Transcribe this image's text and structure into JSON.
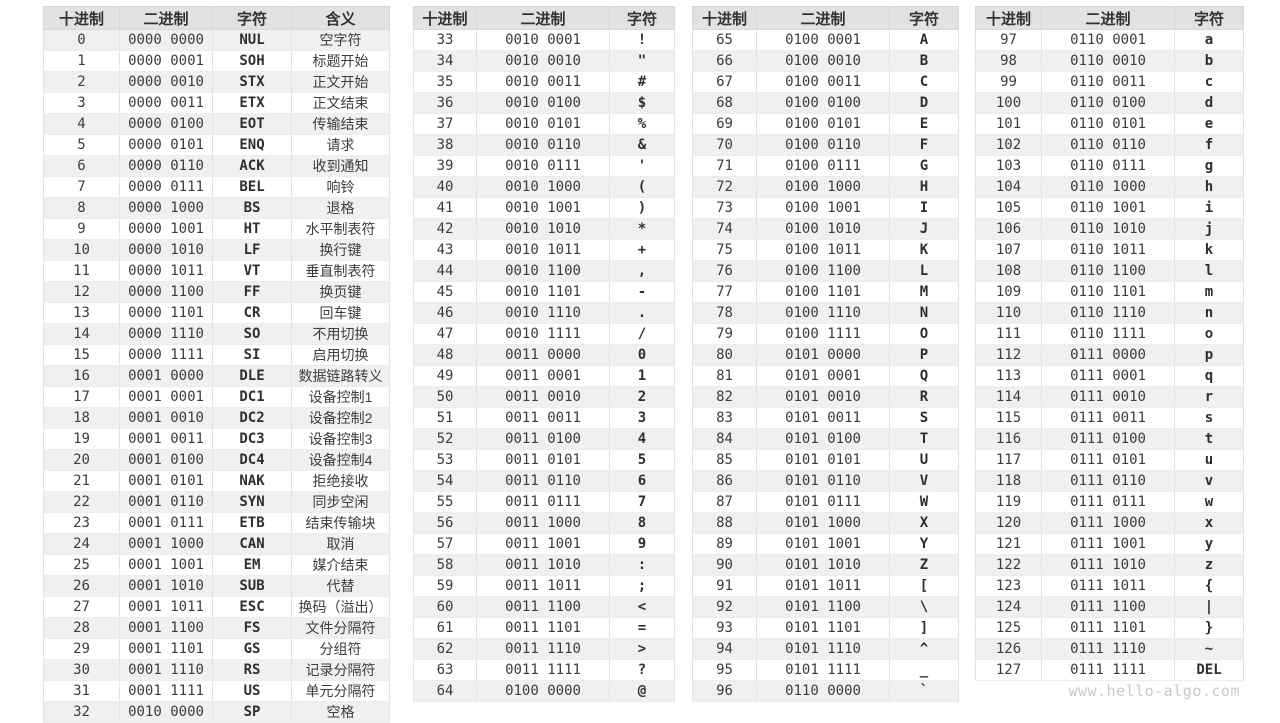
{
  "watermark": "www.hello-algo.com",
  "colors": {
    "header_bg": "#e2e2e2",
    "stripe_bg": "#f0f0f0",
    "row_bg": "#ffffff",
    "text": "#3d3d3d",
    "watermark": "#c9c9c9"
  },
  "tables": [
    {
      "name": "ascii-control-characters",
      "headers": [
        "十进制",
        "二进制",
        "字符",
        "含义"
      ],
      "rows": [
        [
          "0",
          "0000 0000",
          "NUL",
          "空字符"
        ],
        [
          "1",
          "0000 0001",
          "SOH",
          "标题开始"
        ],
        [
          "2",
          "0000 0010",
          "STX",
          "正文开始"
        ],
        [
          "3",
          "0000 0011",
          "ETX",
          "正文结束"
        ],
        [
          "4",
          "0000 0100",
          "EOT",
          "传输结束"
        ],
        [
          "5",
          "0000 0101",
          "ENQ",
          "请求"
        ],
        [
          "6",
          "0000 0110",
          "ACK",
          "收到通知"
        ],
        [
          "7",
          "0000 0111",
          "BEL",
          "响铃"
        ],
        [
          "8",
          "0000 1000",
          "BS",
          "退格"
        ],
        [
          "9",
          "0000 1001",
          "HT",
          "水平制表符"
        ],
        [
          "10",
          "0000 1010",
          "LF",
          "换行键"
        ],
        [
          "11",
          "0000 1011",
          "VT",
          "垂直制表符"
        ],
        [
          "12",
          "0000 1100",
          "FF",
          "换页键"
        ],
        [
          "13",
          "0000 1101",
          "CR",
          "回车键"
        ],
        [
          "14",
          "0000 1110",
          "SO",
          "不用切换"
        ],
        [
          "15",
          "0000 1111",
          "SI",
          "启用切换"
        ],
        [
          "16",
          "0001 0000",
          "DLE",
          "数据链路转义"
        ],
        [
          "17",
          "0001 0001",
          "DC1",
          "设备控制1"
        ],
        [
          "18",
          "0001 0010",
          "DC2",
          "设备控制2"
        ],
        [
          "19",
          "0001 0011",
          "DC3",
          "设备控制3"
        ],
        [
          "20",
          "0001 0100",
          "DC4",
          "设备控制4"
        ],
        [
          "21",
          "0001 0101",
          "NAK",
          "拒绝接收"
        ],
        [
          "22",
          "0001 0110",
          "SYN",
          "同步空闲"
        ],
        [
          "23",
          "0001 0111",
          "ETB",
          "结束传输块"
        ],
        [
          "24",
          "0001 1000",
          "CAN",
          "取消"
        ],
        [
          "25",
          "0001 1001",
          "EM",
          "媒介结束"
        ],
        [
          "26",
          "0001 1010",
          "SUB",
          "代替"
        ],
        [
          "27",
          "0001 1011",
          "ESC",
          "换码（溢出）"
        ],
        [
          "28",
          "0001 1100",
          "FS",
          "文件分隔符"
        ],
        [
          "29",
          "0001 1101",
          "GS",
          "分组符"
        ],
        [
          "30",
          "0001 1110",
          "RS",
          "记录分隔符"
        ],
        [
          "31",
          "0001 1111",
          "US",
          "单元分隔符"
        ],
        [
          "32",
          "0010 0000",
          "SP",
          "空格"
        ]
      ]
    },
    {
      "name": "ascii-33-64",
      "headers": [
        "十进制",
        "二进制",
        "字符"
      ],
      "rows": [
        [
          "33",
          "0010 0001",
          "!"
        ],
        [
          "34",
          "0010 0010",
          "\""
        ],
        [
          "35",
          "0010 0011",
          "#"
        ],
        [
          "36",
          "0010 0100",
          "$"
        ],
        [
          "37",
          "0010 0101",
          "%"
        ],
        [
          "38",
          "0010 0110",
          "&"
        ],
        [
          "39",
          "0010 0111",
          "'"
        ],
        [
          "40",
          "0010 1000",
          "("
        ],
        [
          "41",
          "0010 1001",
          ")"
        ],
        [
          "42",
          "0010 1010",
          "*"
        ],
        [
          "43",
          "0010 1011",
          "+"
        ],
        [
          "44",
          "0010 1100",
          ","
        ],
        [
          "45",
          "0010 1101",
          "-"
        ],
        [
          "46",
          "0010 1110",
          "."
        ],
        [
          "47",
          "0010 1111",
          "/"
        ],
        [
          "48",
          "0011 0000",
          "0"
        ],
        [
          "49",
          "0011 0001",
          "1"
        ],
        [
          "50",
          "0011 0010",
          "2"
        ],
        [
          "51",
          "0011 0011",
          "3"
        ],
        [
          "52",
          "0011 0100",
          "4"
        ],
        [
          "53",
          "0011 0101",
          "5"
        ],
        [
          "54",
          "0011 0110",
          "6"
        ],
        [
          "55",
          "0011 0111",
          "7"
        ],
        [
          "56",
          "0011 1000",
          "8"
        ],
        [
          "57",
          "0011 1001",
          "9"
        ],
        [
          "58",
          "0011 1010",
          ":"
        ],
        [
          "59",
          "0011 1011",
          ";"
        ],
        [
          "60",
          "0011 1100",
          "<"
        ],
        [
          "61",
          "0011 1101",
          "="
        ],
        [
          "62",
          "0011 1110",
          ">"
        ],
        [
          "63",
          "0011 1111",
          "?"
        ],
        [
          "64",
          "0100 0000",
          "@"
        ]
      ]
    },
    {
      "name": "ascii-65-96",
      "headers": [
        "十进制",
        "二进制",
        "字符"
      ],
      "rows": [
        [
          "65",
          "0100 0001",
          "A"
        ],
        [
          "66",
          "0100 0010",
          "B"
        ],
        [
          "67",
          "0100 0011",
          "C"
        ],
        [
          "68",
          "0100 0100",
          "D"
        ],
        [
          "69",
          "0100 0101",
          "E"
        ],
        [
          "70",
          "0100 0110",
          "F"
        ],
        [
          "71",
          "0100 0111",
          "G"
        ],
        [
          "72",
          "0100 1000",
          "H"
        ],
        [
          "73",
          "0100 1001",
          "I"
        ],
        [
          "74",
          "0100 1010",
          "J"
        ],
        [
          "75",
          "0100 1011",
          "K"
        ],
        [
          "76",
          "0100 1100",
          "L"
        ],
        [
          "77",
          "0100 1101",
          "M"
        ],
        [
          "78",
          "0100 1110",
          "N"
        ],
        [
          "79",
          "0100 1111",
          "O"
        ],
        [
          "80",
          "0101 0000",
          "P"
        ],
        [
          "81",
          "0101 0001",
          "Q"
        ],
        [
          "82",
          "0101 0010",
          "R"
        ],
        [
          "83",
          "0101 0011",
          "S"
        ],
        [
          "84",
          "0101 0100",
          "T"
        ],
        [
          "85",
          "0101 0101",
          "U"
        ],
        [
          "86",
          "0101 0110",
          "V"
        ],
        [
          "87",
          "0101 0111",
          "W"
        ],
        [
          "88",
          "0101 1000",
          "X"
        ],
        [
          "89",
          "0101 1001",
          "Y"
        ],
        [
          "90",
          "0101 1010",
          "Z"
        ],
        [
          "91",
          "0101 1011",
          "["
        ],
        [
          "92",
          "0101 1100",
          "\\"
        ],
        [
          "93",
          "0101 1101",
          "]"
        ],
        [
          "94",
          "0101 1110",
          "^"
        ],
        [
          "95",
          "0101 1111",
          "_"
        ],
        [
          "96",
          "0110 0000",
          "`"
        ]
      ]
    },
    {
      "name": "ascii-97-127",
      "headers": [
        "十进制",
        "二进制",
        "字符"
      ],
      "rows": [
        [
          "97",
          "0110 0001",
          "a"
        ],
        [
          "98",
          "0110 0010",
          "b"
        ],
        [
          "99",
          "0110 0011",
          "c"
        ],
        [
          "100",
          "0110 0100",
          "d"
        ],
        [
          "101",
          "0110 0101",
          "e"
        ],
        [
          "102",
          "0110 0110",
          "f"
        ],
        [
          "103",
          "0110 0111",
          "g"
        ],
        [
          "104",
          "0110 1000",
          "h"
        ],
        [
          "105",
          "0110 1001",
          "i"
        ],
        [
          "106",
          "0110 1010",
          "j"
        ],
        [
          "107",
          "0110 1011",
          "k"
        ],
        [
          "108",
          "0110 1100",
          "l"
        ],
        [
          "109",
          "0110 1101",
          "m"
        ],
        [
          "110",
          "0110 1110",
          "n"
        ],
        [
          "111",
          "0110 1111",
          "o"
        ],
        [
          "112",
          "0111 0000",
          "p"
        ],
        [
          "113",
          "0111 0001",
          "q"
        ],
        [
          "114",
          "0111 0010",
          "r"
        ],
        [
          "115",
          "0111 0011",
          "s"
        ],
        [
          "116",
          "0111 0100",
          "t"
        ],
        [
          "117",
          "0111 0101",
          "u"
        ],
        [
          "118",
          "0111 0110",
          "v"
        ],
        [
          "119",
          "0111 0111",
          "w"
        ],
        [
          "120",
          "0111 1000",
          "x"
        ],
        [
          "121",
          "0111 1001",
          "y"
        ],
        [
          "122",
          "0111 1010",
          "z"
        ],
        [
          "123",
          "0111 1011",
          "{"
        ],
        [
          "124",
          "0111 1100",
          "|"
        ],
        [
          "125",
          "0111 1101",
          "}"
        ],
        [
          "126",
          "0111 1110",
          "~"
        ],
        [
          "127",
          "0111 1111",
          "DEL"
        ]
      ]
    }
  ]
}
